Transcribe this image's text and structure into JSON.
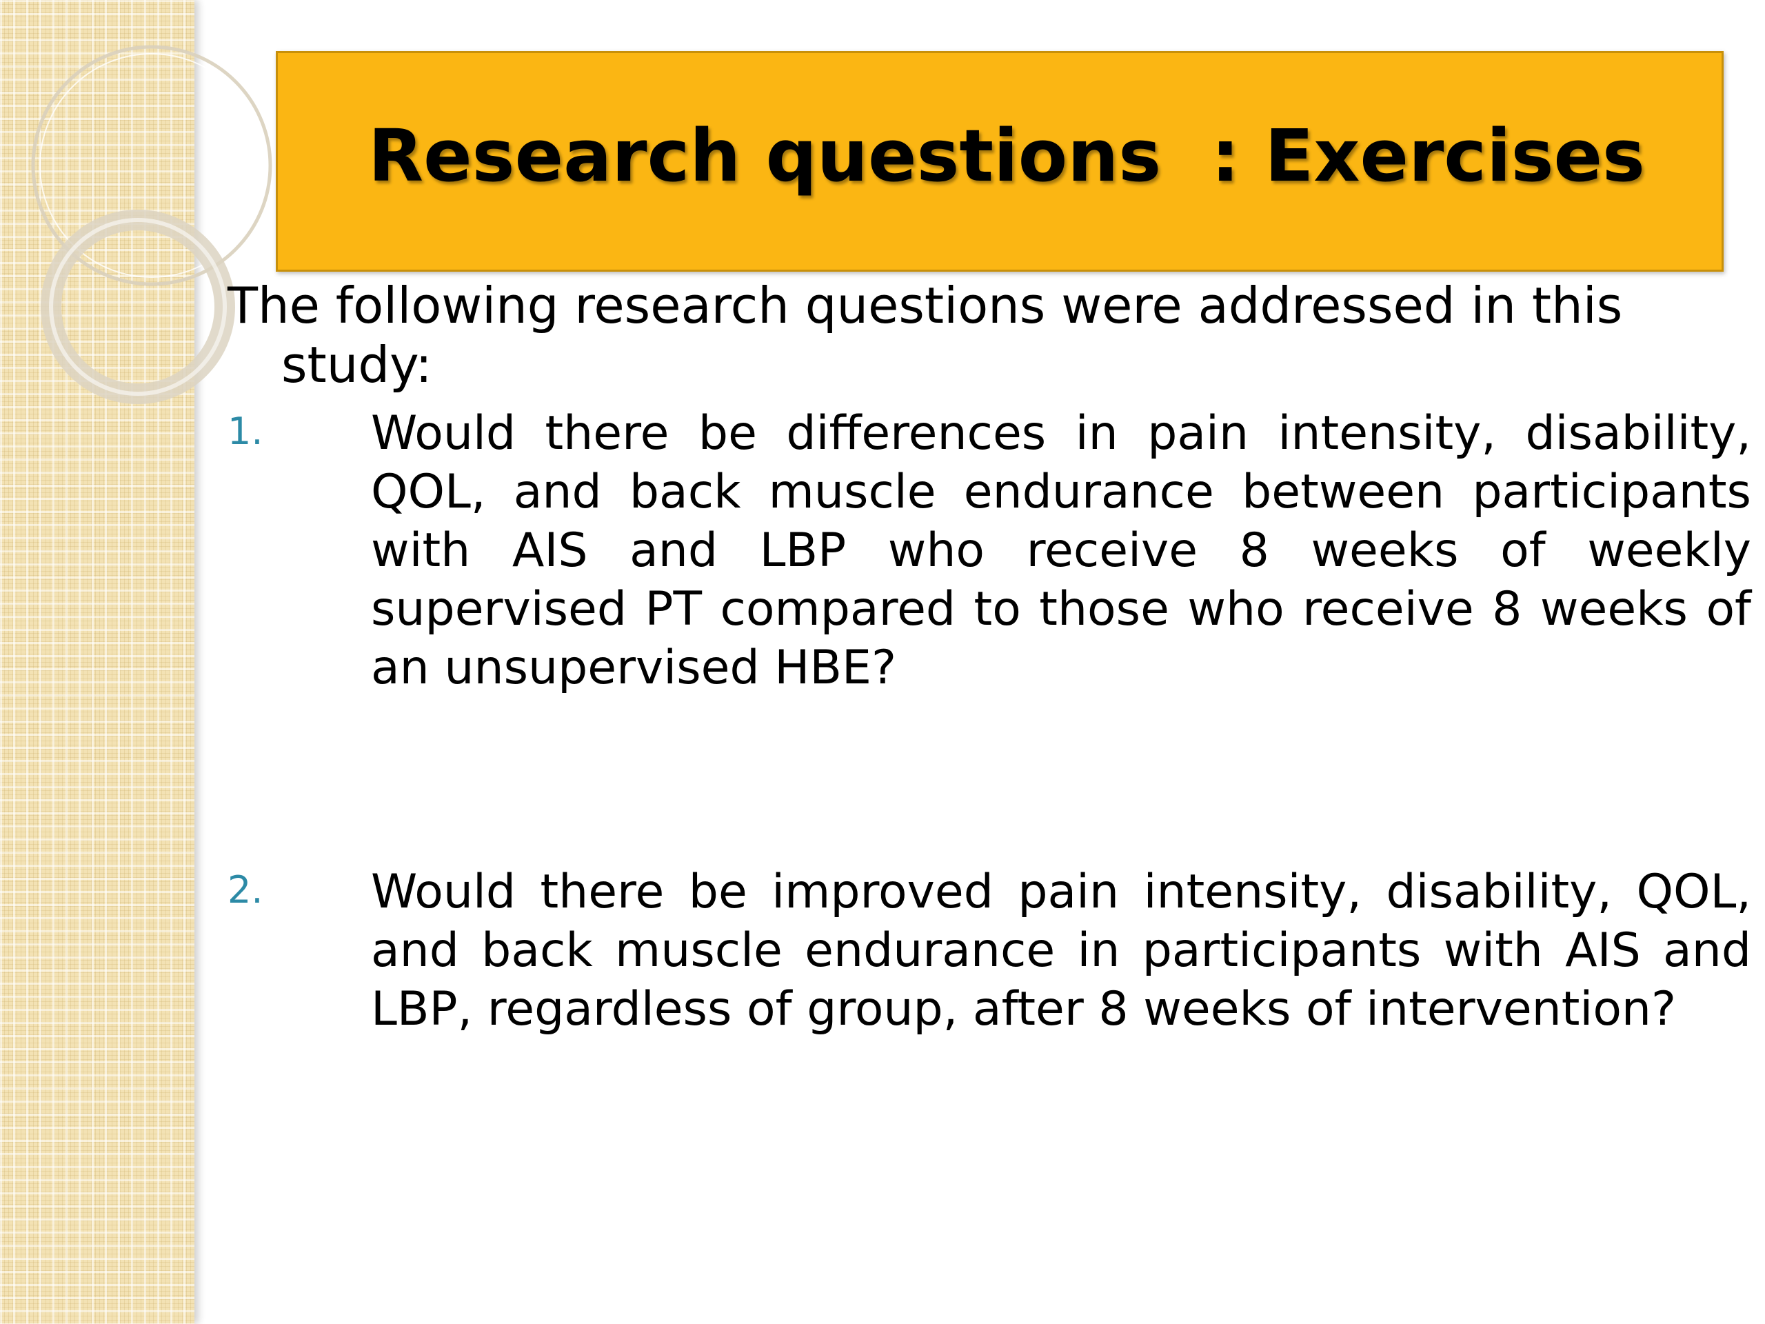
{
  "title": "Research questions  : Exercises",
  "intro": "The following research questions were addressed in this study:",
  "questions": [
    {
      "number": "1.",
      "text": "Would there be differences in pain intensity, disability, QOL, and back muscle endurance between participants with AIS and LBP who receive 8 weeks of weekly supervised PT compared to those who receive 8 weeks of an unsupervised HBE?"
    },
    {
      "number": "2.",
      "text": "Would there be improved pain intensity, disability, QOL, and back muscle endurance in participants with AIS and LBP, regardless of group, after 8 weeks of intervention?"
    }
  ],
  "colors": {
    "title_background": "#fbb613",
    "side_strip": "#f3e2b4",
    "number_color": "#2c8aa6"
  }
}
